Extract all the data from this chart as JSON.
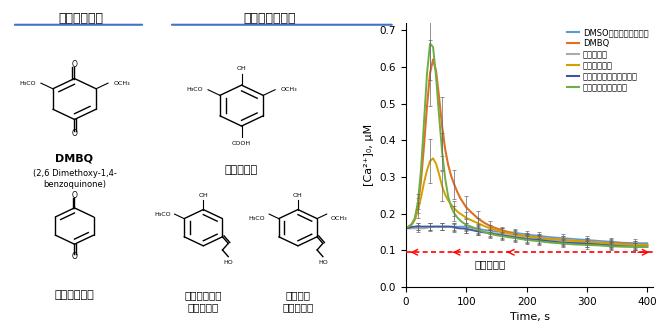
{
  "xlabel": "Time, s",
  "ylabel": "[Ca²⁺]₀, μM",
  "xlim": [
    0,
    410
  ],
  "ylim": [
    0,
    0.72
  ],
  "yticks": [
    0,
    0.1,
    0.2,
    0.3,
    0.4,
    0.5,
    0.6,
    0.7
  ],
  "xticks": [
    0,
    100,
    200,
    300,
    400
  ],
  "dotted_line_y": 0.095,
  "kinon_response_text": "キノン応答",
  "series": [
    {
      "name": "DMSO（コントロール）",
      "color": "#5B9BD5",
      "linewidth": 1.2,
      "times": [
        0,
        5,
        10,
        15,
        20,
        25,
        30,
        35,
        40,
        45,
        50,
        55,
        60,
        65,
        70,
        75,
        80,
        85,
        90,
        95,
        100,
        110,
        120,
        130,
        140,
        150,
        160,
        170,
        180,
        190,
        200,
        220,
        240,
        260,
        280,
        300,
        320,
        340,
        360,
        380,
        400
      ],
      "values": [
        0.16,
        0.165,
        0.165,
        0.165,
        0.165,
        0.165,
        0.165,
        0.165,
        0.165,
        0.165,
        0.165,
        0.165,
        0.165,
        0.165,
        0.165,
        0.165,
        0.165,
        0.165,
        0.165,
        0.165,
        0.165,
        0.16,
        0.16,
        0.155,
        0.155,
        0.15,
        0.15,
        0.15,
        0.15,
        0.145,
        0.145,
        0.14,
        0.135,
        0.135,
        0.13,
        0.13,
        0.125,
        0.125,
        0.12,
        0.12,
        0.12
      ],
      "errors": [
        0.01,
        0.01,
        0.01,
        0.01,
        0.01,
        0.01,
        0.01,
        0.01,
        0.01,
        0.01,
        0.01,
        0.01,
        0.01,
        0.01,
        0.01,
        0.01,
        0.01,
        0.01,
        0.01,
        0.01,
        0.01,
        0.01,
        0.01,
        0.01,
        0.01,
        0.01,
        0.01,
        0.01,
        0.01,
        0.01,
        0.01,
        0.01,
        0.01,
        0.01,
        0.01,
        0.01,
        0.01,
        0.01,
        0.01,
        0.01,
        0.01
      ]
    },
    {
      "name": "DMBQ",
      "color": "#E07020",
      "linewidth": 1.5,
      "times": [
        0,
        5,
        10,
        15,
        20,
        25,
        30,
        35,
        40,
        45,
        50,
        55,
        60,
        65,
        70,
        75,
        80,
        85,
        90,
        95,
        100,
        110,
        120,
        130,
        140,
        150,
        160,
        170,
        180,
        190,
        200,
        220,
        240,
        260,
        280,
        300,
        320,
        340,
        360,
        380,
        400
      ],
      "values": [
        0.16,
        0.165,
        0.17,
        0.18,
        0.21,
        0.28,
        0.38,
        0.5,
        0.6,
        0.65,
        0.6,
        0.52,
        0.43,
        0.37,
        0.33,
        0.3,
        0.28,
        0.26,
        0.24,
        0.23,
        0.22,
        0.2,
        0.185,
        0.175,
        0.165,
        0.16,
        0.155,
        0.15,
        0.145,
        0.14,
        0.14,
        0.135,
        0.13,
        0.13,
        0.125,
        0.125,
        0.12,
        0.12,
        0.12,
        0.115,
        0.115
      ],
      "errors": [
        0.01,
        0.01,
        0.01,
        0.015,
        0.02,
        0.03,
        0.05,
        0.07,
        0.09,
        0.1,
        0.1,
        0.09,
        0.08,
        0.07,
        0.06,
        0.05,
        0.04,
        0.04,
        0.03,
        0.03,
        0.03,
        0.025,
        0.02,
        0.02,
        0.015,
        0.015,
        0.01,
        0.01,
        0.01,
        0.01,
        0.01,
        0.01,
        0.01,
        0.01,
        0.01,
        0.01,
        0.01,
        0.01,
        0.01,
        0.01,
        0.01
      ]
    },
    {
      "name": "シリング酸",
      "color": "#AAAAAA",
      "linewidth": 1.2,
      "times": [
        0,
        5,
        10,
        15,
        20,
        25,
        30,
        35,
        40,
        45,
        50,
        55,
        60,
        65,
        70,
        75,
        80,
        85,
        90,
        95,
        100,
        110,
        120,
        130,
        140,
        150,
        160,
        170,
        180,
        190,
        200,
        220,
        240,
        260,
        280,
        300,
        320,
        340,
        360,
        380,
        400
      ],
      "values": [
        0.16,
        0.16,
        0.16,
        0.16,
        0.16,
        0.16,
        0.16,
        0.16,
        0.165,
        0.165,
        0.165,
        0.165,
        0.165,
        0.165,
        0.165,
        0.165,
        0.16,
        0.16,
        0.16,
        0.16,
        0.16,
        0.155,
        0.155,
        0.15,
        0.15,
        0.145,
        0.145,
        0.14,
        0.14,
        0.135,
        0.135,
        0.13,
        0.13,
        0.125,
        0.12,
        0.12,
        0.12,
        0.115,
        0.115,
        0.11,
        0.11
      ],
      "errors": [
        0.01,
        0.01,
        0.01,
        0.01,
        0.01,
        0.01,
        0.01,
        0.01,
        0.01,
        0.01,
        0.01,
        0.01,
        0.01,
        0.01,
        0.01,
        0.01,
        0.01,
        0.01,
        0.01,
        0.01,
        0.01,
        0.01,
        0.01,
        0.01,
        0.01,
        0.01,
        0.01,
        0.01,
        0.01,
        0.01,
        0.01,
        0.01,
        0.01,
        0.01,
        0.01,
        0.01,
        0.01,
        0.01,
        0.01,
        0.01,
        0.01
      ]
    },
    {
      "name": "ベンゾキノン",
      "color": "#D4A000",
      "linewidth": 1.4,
      "times": [
        0,
        5,
        10,
        15,
        20,
        25,
        30,
        35,
        40,
        45,
        50,
        55,
        60,
        65,
        70,
        75,
        80,
        85,
        90,
        95,
        100,
        110,
        120,
        130,
        140,
        150,
        160,
        170,
        180,
        190,
        200,
        220,
        240,
        260,
        280,
        300,
        320,
        340,
        360,
        380,
        400
      ],
      "values": [
        0.16,
        0.165,
        0.17,
        0.18,
        0.205,
        0.24,
        0.29,
        0.32,
        0.35,
        0.36,
        0.34,
        0.31,
        0.27,
        0.25,
        0.235,
        0.225,
        0.215,
        0.205,
        0.2,
        0.195,
        0.19,
        0.18,
        0.175,
        0.165,
        0.16,
        0.155,
        0.15,
        0.145,
        0.145,
        0.14,
        0.14,
        0.135,
        0.13,
        0.13,
        0.125,
        0.125,
        0.12,
        0.12,
        0.115,
        0.115,
        0.115
      ],
      "errors": [
        0.01,
        0.01,
        0.01,
        0.015,
        0.02,
        0.03,
        0.04,
        0.05,
        0.06,
        0.06,
        0.06,
        0.05,
        0.04,
        0.03,
        0.03,
        0.025,
        0.02,
        0.02,
        0.02,
        0.015,
        0.015,
        0.015,
        0.015,
        0.015,
        0.01,
        0.01,
        0.01,
        0.01,
        0.01,
        0.01,
        0.01,
        0.01,
        0.01,
        0.01,
        0.01,
        0.01,
        0.01,
        0.01,
        0.01,
        0.01,
        0.01
      ]
    },
    {
      "name": "コニフェリルアルコール",
      "color": "#3A56A0",
      "linewidth": 1.2,
      "times": [
        0,
        5,
        10,
        15,
        20,
        25,
        30,
        35,
        40,
        45,
        50,
        55,
        60,
        65,
        70,
        75,
        80,
        85,
        90,
        95,
        100,
        110,
        120,
        130,
        140,
        150,
        160,
        170,
        180,
        190,
        200,
        220,
        240,
        260,
        280,
        300,
        320,
        340,
        360,
        380,
        400
      ],
      "values": [
        0.16,
        0.16,
        0.165,
        0.165,
        0.165,
        0.165,
        0.165,
        0.165,
        0.165,
        0.165,
        0.165,
        0.165,
        0.165,
        0.165,
        0.165,
        0.165,
        0.165,
        0.16,
        0.16,
        0.16,
        0.16,
        0.155,
        0.15,
        0.15,
        0.145,
        0.145,
        0.14,
        0.14,
        0.135,
        0.135,
        0.13,
        0.13,
        0.125,
        0.12,
        0.12,
        0.12,
        0.115,
        0.115,
        0.11,
        0.11,
        0.11
      ],
      "errors": [
        0.01,
        0.01,
        0.01,
        0.01,
        0.01,
        0.01,
        0.01,
        0.01,
        0.01,
        0.01,
        0.01,
        0.01,
        0.01,
        0.01,
        0.01,
        0.01,
        0.01,
        0.01,
        0.01,
        0.01,
        0.01,
        0.01,
        0.01,
        0.01,
        0.01,
        0.01,
        0.01,
        0.01,
        0.01,
        0.01,
        0.01,
        0.01,
        0.01,
        0.01,
        0.01,
        0.01,
        0.01,
        0.01,
        0.01,
        0.01,
        0.01
      ]
    },
    {
      "name": "シナピルアルコール",
      "color": "#70AD47",
      "linewidth": 1.4,
      "times": [
        0,
        5,
        10,
        15,
        20,
        25,
        30,
        35,
        40,
        45,
        50,
        55,
        60,
        65,
        70,
        75,
        80,
        85,
        90,
        95,
        100,
        110,
        120,
        130,
        140,
        150,
        160,
        170,
        180,
        190,
        200,
        220,
        240,
        260,
        280,
        300,
        320,
        340,
        360,
        380,
        400
      ],
      "values": [
        0.16,
        0.165,
        0.17,
        0.18,
        0.22,
        0.3,
        0.45,
        0.6,
        0.7,
        0.68,
        0.58,
        0.46,
        0.36,
        0.29,
        0.24,
        0.215,
        0.2,
        0.19,
        0.18,
        0.175,
        0.17,
        0.165,
        0.155,
        0.15,
        0.145,
        0.14,
        0.14,
        0.135,
        0.135,
        0.13,
        0.13,
        0.125,
        0.12,
        0.12,
        0.115,
        0.115,
        0.115,
        0.11,
        0.11,
        0.11,
        0.11
      ],
      "errors": [
        0.01,
        0.01,
        0.01,
        0.015,
        0.02,
        0.04,
        0.06,
        0.08,
        0.1,
        0.1,
        0.09,
        0.07,
        0.05,
        0.04,
        0.03,
        0.025,
        0.02,
        0.02,
        0.015,
        0.015,
        0.015,
        0.015,
        0.015,
        0.01,
        0.01,
        0.01,
        0.01,
        0.01,
        0.01,
        0.01,
        0.01,
        0.01,
        0.01,
        0.01,
        0.01,
        0.01,
        0.01,
        0.01,
        0.01,
        0.01,
        0.01
      ]
    }
  ],
  "background_color": "#FFFFFF",
  "error_bar_color": "#555555",
  "errorbar_times": [
    20,
    40,
    60,
    80,
    100,
    120,
    140,
    160,
    180,
    200,
    230,
    260,
    300,
    340,
    380
  ],
  "header_underline_color": "#4472C4",
  "section1_header": "キノン化合物",
  "section2_header": "リグニン類縁体",
  "label_DMBQ": "DMBQ",
  "label_DMBQ_sub": "(2,6 Dimethoxy-1,4-\nbenzoquinone)",
  "label_benzoquinone": "ベンゾキノン",
  "label_syringic": "シリング酸",
  "label_coniferyl": "コニフェリル\nアルコール",
  "label_sinapyl": "シナピル\nアルコール"
}
